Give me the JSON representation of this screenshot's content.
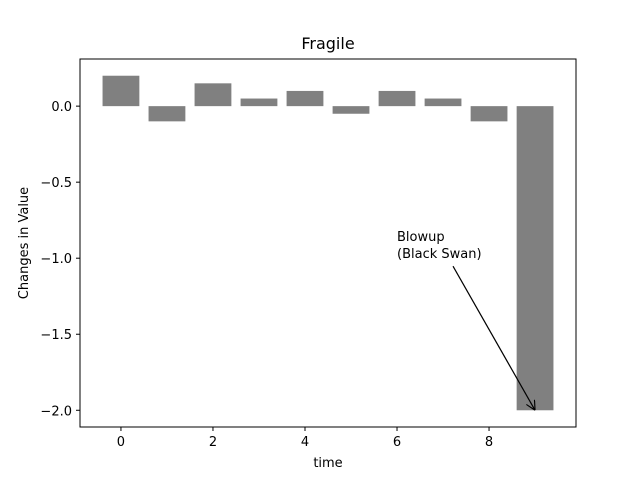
{
  "chart_data": {
    "type": "bar",
    "title": "Fragile",
    "xlabel": "time",
    "ylabel": "Changes in Value",
    "x": [
      0,
      1,
      2,
      3,
      4,
      5,
      6,
      7,
      8,
      9
    ],
    "values": [
      0.2,
      -0.1,
      0.15,
      0.05,
      0.1,
      -0.05,
      0.1,
      0.05,
      -0.1,
      -2.0
    ],
    "color": "#808080",
    "xlim": [
      -0.89,
      9.89
    ],
    "xticks": [
      0,
      2,
      4,
      6,
      8
    ],
    "ylim": [
      -2.11,
      0.31
    ],
    "yticks": [
      {
        "value": -2.0,
        "label": "−2.0"
      },
      {
        "value": -1.5,
        "label": "−1.5"
      },
      {
        "value": -1.0,
        "label": "−1.0"
      },
      {
        "value": -0.5,
        "label": "−0.5"
      },
      {
        "value": 0.0,
        "label": "0.0"
      }
    ],
    "grid": false,
    "annotations": [
      {
        "lines": [
          "Blowup",
          "(Black Swan)"
        ],
        "xy": [
          9,
          -2.0
        ],
        "xytext": [
          6,
          -1.0
        ]
      }
    ]
  }
}
